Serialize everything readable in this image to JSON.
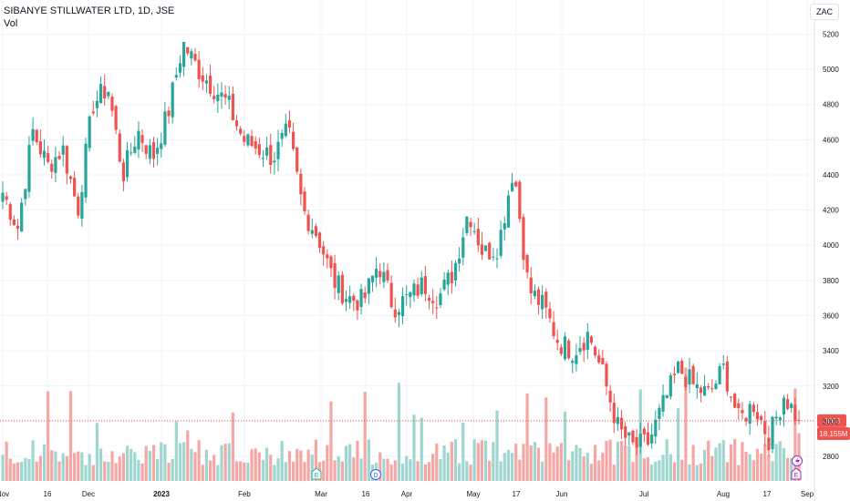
{
  "header": {
    "symbol_line": "SIBANYE STILLWATER LTD, 1D, JSE",
    "volume_label": "Vol",
    "currency_button": "ZAC"
  },
  "price_badge": "3003",
  "volume_badge": "18.155M",
  "markers": [
    {
      "label": "E",
      "kind": "earnings",
      "date": "2023-03-01"
    },
    {
      "label": "D",
      "kind": "dividend",
      "date": "2023-03-23"
    },
    {
      "label": "E",
      "kind": "earnings",
      "date": "2023-08-29"
    }
  ],
  "colors": {
    "up": "#26a69a",
    "down": "#ef5350",
    "vol_up": "#9fd6cf",
    "vol_down": "#f5a7a6",
    "grid": "#f0f3fa",
    "axis_text": "#131722",
    "price_line": "#ef5350",
    "earnings": "#26a69a",
    "dividend": "#2962ff",
    "split": "#9c27b0"
  },
  "chart_data": {
    "type": "candlestick",
    "title": "SIBANYE STILLWATER LTD, 1D, JSE",
    "y_range": [
      2650,
      5280
    ],
    "y_ticks": [
      2800,
      3000,
      3200,
      3400,
      3600,
      3800,
      4000,
      4200,
      4400,
      4600,
      4800,
      5000,
      5200
    ],
    "x_ticks": [
      {
        "label": "Nov",
        "bold": false
      },
      {
        "label": "16",
        "bold": false
      },
      {
        "label": "Dec",
        "bold": false
      },
      {
        "label": "2023",
        "bold": true
      },
      {
        "label": "Feb",
        "bold": false
      },
      {
        "label": "Mar",
        "bold": false
      },
      {
        "label": "16",
        "bold": false
      },
      {
        "label": "Apr",
        "bold": false
      },
      {
        "label": "May",
        "bold": false
      },
      {
        "label": "17",
        "bold": false
      },
      {
        "label": "Jun",
        "bold": false
      },
      {
        "label": "Jul",
        "bold": false
      },
      {
        "label": "Aug",
        "bold": false
      },
      {
        "label": "17",
        "bold": false
      },
      {
        "label": "Sep",
        "bold": false
      }
    ],
    "last_price": 3003,
    "last_volume": "18.155M",
    "close_anchors": [
      4300,
      4100,
      4650,
      4450,
      4550,
      4200,
      4800,
      4900,
      4400,
      4650,
      4500,
      4750,
      5150,
      5000,
      4900,
      4800,
      4600,
      4550,
      4500,
      4650,
      4200,
      4050,
      3800,
      3700,
      3680,
      3900,
      3650,
      3700,
      3780,
      3700,
      3850,
      4200,
      3950,
      4000,
      4450,
      3750,
      3650,
      3450,
      3400,
      3500,
      3250,
      2950,
      2850,
      2880,
      3100,
      3300,
      3200,
      3150,
      3300,
      3000,
      3100,
      2900,
      3150,
      3003
    ],
    "volume_scale": [
      0,
      45
    ],
    "volume_note": "volume in millions (approximate)"
  }
}
